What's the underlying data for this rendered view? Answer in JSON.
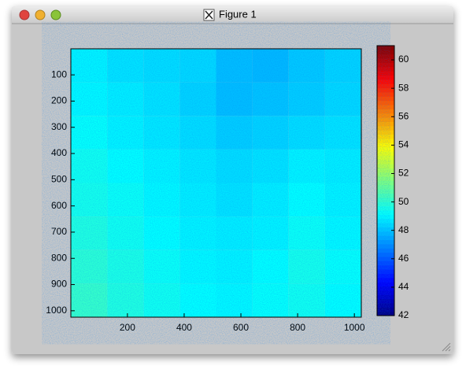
{
  "window": {
    "title": "Figure 1"
  },
  "chart_data": {
    "type": "heatmap",
    "x": [
      64.5,
      192.5,
      320.5,
      448.5,
      576.5,
      704.5,
      832.5,
      960.5
    ],
    "y": [
      64.5,
      192.5,
      320.5,
      448.5,
      576.5,
      704.5,
      832.5,
      960.5
    ],
    "values": [
      [
        48.9,
        48.6,
        48.5,
        48.4,
        47.9,
        47.8,
        48.1,
        48.3
      ],
      [
        49.0,
        48.8,
        48.6,
        48.3,
        47.9,
        48.0,
        48.2,
        48.4
      ],
      [
        49.2,
        48.9,
        48.7,
        48.5,
        48.2,
        48.3,
        48.5,
        48.6
      ],
      [
        49.4,
        49.1,
        48.9,
        48.7,
        48.5,
        48.6,
        48.9,
        48.8
      ],
      [
        49.5,
        49.3,
        49.0,
        48.8,
        48.6,
        48.8,
        49.1,
        48.9
      ],
      [
        49.7,
        49.4,
        49.1,
        48.9,
        48.8,
        48.9,
        49.3,
        49.0
      ],
      [
        49.9,
        49.6,
        49.3,
        49.0,
        48.9,
        49.1,
        49.5,
        49.2
      ],
      [
        50.1,
        49.7,
        49.4,
        49.1,
        49.0,
        49.2,
        49.4,
        49.1
      ]
    ],
    "xlim": [
      0.5,
      1024.5
    ],
    "xticks": [
      200,
      400,
      600,
      800,
      1000
    ],
    "ylim": [
      0.5,
      1024.5
    ],
    "yticks": [
      100,
      200,
      300,
      400,
      500,
      600,
      700,
      800,
      900,
      1000
    ],
    "y_reversed": true,
    "colormap": "jet",
    "clim": [
      42,
      61
    ],
    "cticks": [
      42,
      44,
      46,
      48,
      50,
      52,
      54,
      56,
      58,
      60
    ]
  }
}
